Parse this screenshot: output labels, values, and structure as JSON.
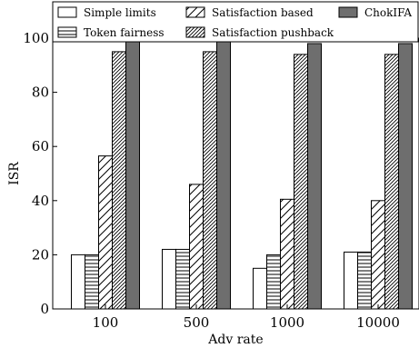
{
  "chart_data": {
    "type": "bar",
    "categories": [
      "100",
      "500",
      "1000",
      "10000"
    ],
    "series": [
      {
        "name": "Simple limits",
        "values": [
          20,
          22,
          15,
          21
        ],
        "pattern": "none"
      },
      {
        "name": "Token fairness",
        "values": [
          20,
          22,
          20,
          21
        ],
        "pattern": "horizontal"
      },
      {
        "name": "Satisfaction based",
        "values": [
          56.5,
          46,
          40.5,
          40
        ],
        "pattern": "sparse-diagonal"
      },
      {
        "name": "Satisfaction pushback",
        "values": [
          95,
          95,
          94,
          94
        ],
        "pattern": "dense-diagonal"
      },
      {
        "name": "ChokIFA",
        "values": [
          99,
          99,
          98,
          98
        ],
        "pattern": "solid"
      }
    ],
    "xlabel": "Adv rate",
    "ylabel": "ISR",
    "ylim": [
      0,
      100
    ],
    "yticks": [
      0,
      20,
      40,
      60,
      80,
      100
    ],
    "legend_position": "top",
    "colors": {
      "fill": "#ffffff",
      "stroke": "#000000",
      "solid": "#6e6e6e"
    }
  }
}
